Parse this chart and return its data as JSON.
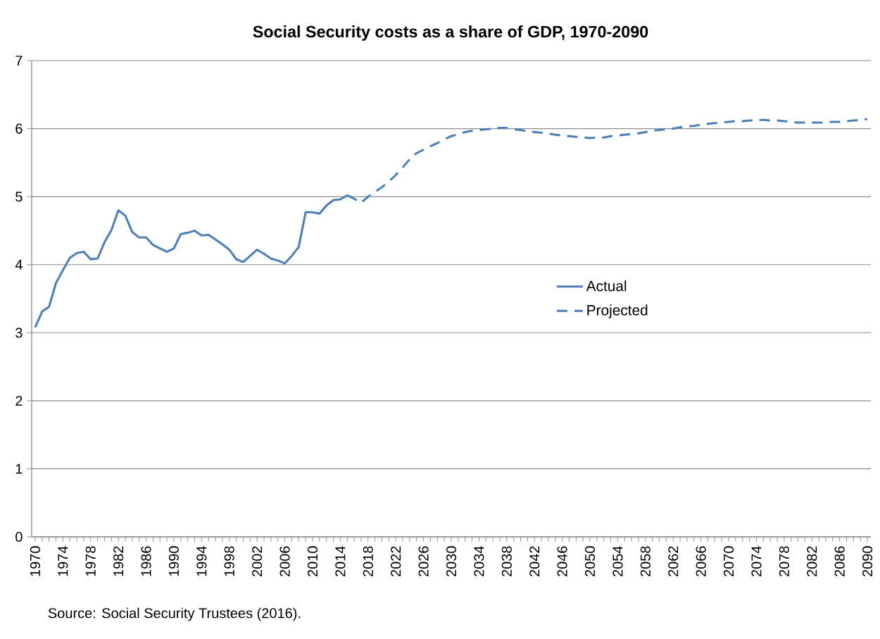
{
  "chart_data": {
    "type": "line",
    "title": "Social Security costs as a share of GDP, 1970-2090",
    "annotations": [
      "Source: Social Security Trustees (2016)."
    ],
    "xlim": [
      1969.5,
      2090.5
    ],
    "xticks": [
      1970,
      1974,
      1978,
      1982,
      1986,
      1990,
      1994,
      1998,
      2002,
      2006,
      2010,
      2014,
      2018,
      2022,
      2026,
      2030,
      2034,
      2038,
      2042,
      2046,
      2050,
      2054,
      2058,
      2062,
      2066,
      2070,
      2074,
      2078,
      2082,
      2086,
      2090
    ],
    "ylim": [
      0,
      7
    ],
    "yticks": [
      0,
      1,
      2,
      3,
      4,
      5,
      6,
      7
    ],
    "grid": "y",
    "legend": "right",
    "series": [
      {
        "name": "Actual",
        "color": "#4a7ebb",
        "line_style": "solid",
        "x": [
          1970,
          1971,
          1972,
          1973,
          1974,
          1975,
          1976,
          1977,
          1978,
          1979,
          1980,
          1981,
          1982,
          1983,
          1984,
          1985,
          1986,
          1987,
          1988,
          1989,
          1990,
          1991,
          1992,
          1993,
          1994,
          1995,
          1996,
          1997,
          1998,
          1999,
          2000,
          2001,
          2002,
          2003,
          2004,
          2005,
          2006,
          2007,
          2008,
          2009,
          2010,
          2011,
          2012,
          2013,
          2014,
          2015
        ],
        "values": [
          3.08,
          3.31,
          3.38,
          3.73,
          3.92,
          4.1,
          4.17,
          4.19,
          4.08,
          4.09,
          4.33,
          4.51,
          4.8,
          4.72,
          4.48,
          4.4,
          4.4,
          4.29,
          4.24,
          4.19,
          4.24,
          4.45,
          4.47,
          4.5,
          4.43,
          4.44,
          4.37,
          4.3,
          4.22,
          4.08,
          4.04,
          4.13,
          4.22,
          4.16,
          4.09,
          4.06,
          4.02,
          4.13,
          4.26,
          4.77,
          4.77,
          4.75,
          4.87,
          4.95,
          4.96,
          5.02
        ]
      },
      {
        "name": "Projected",
        "color": "#4a7ebb",
        "line_style": "dashed",
        "x": [
          2015,
          2016,
          2017,
          2018,
          2019,
          2020,
          2021,
          2022,
          2023,
          2024,
          2025,
          2026,
          2027,
          2028,
          2029,
          2030,
          2031,
          2032,
          2033,
          2034,
          2035,
          2036,
          2037,
          2038,
          2039,
          2040,
          2041,
          2042,
          2043,
          2044,
          2045,
          2046,
          2047,
          2048,
          2049,
          2050,
          2051,
          2052,
          2053,
          2054,
          2055,
          2056,
          2057,
          2058,
          2059,
          2060,
          2061,
          2062,
          2063,
          2064,
          2065,
          2066,
          2067,
          2068,
          2069,
          2070,
          2071,
          2072,
          2073,
          2074,
          2075,
          2076,
          2077,
          2078,
          2079,
          2080,
          2081,
          2082,
          2083,
          2084,
          2085,
          2086,
          2087,
          2088,
          2089,
          2090
        ],
        "values": [
          5.02,
          4.97,
          4.91,
          5.0,
          5.07,
          5.14,
          5.22,
          5.32,
          5.43,
          5.55,
          5.64,
          5.69,
          5.74,
          5.79,
          5.84,
          5.89,
          5.92,
          5.95,
          5.97,
          5.98,
          5.99,
          6.0,
          6.01,
          6.01,
          5.99,
          5.98,
          5.96,
          5.95,
          5.94,
          5.93,
          5.91,
          5.9,
          5.89,
          5.88,
          5.87,
          5.86,
          5.87,
          5.87,
          5.89,
          5.9,
          5.91,
          5.92,
          5.93,
          5.95,
          5.97,
          5.98,
          5.99,
          6.0,
          6.02,
          6.03,
          6.04,
          6.06,
          6.07,
          6.08,
          6.09,
          6.1,
          6.11,
          6.11,
          6.12,
          6.12,
          6.13,
          6.12,
          6.12,
          6.11,
          6.1,
          6.09,
          6.09,
          6.09,
          6.09,
          6.09,
          6.1,
          6.1,
          6.11,
          6.12,
          6.13,
          6.14
        ]
      }
    ]
  }
}
